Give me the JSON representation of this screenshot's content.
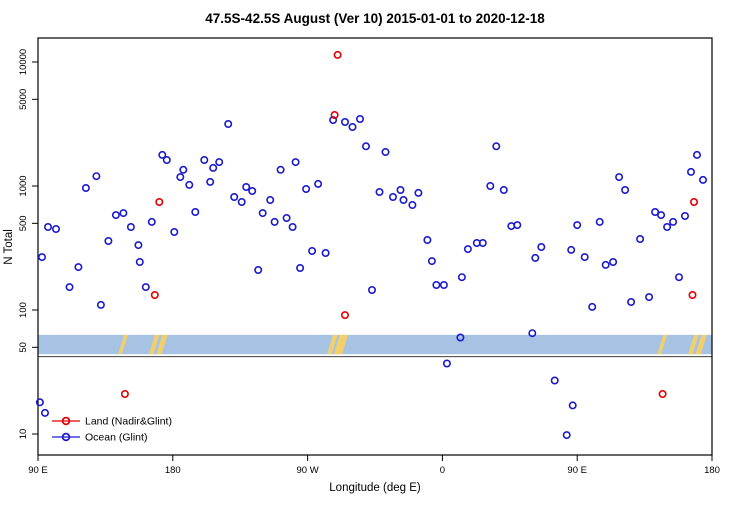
{
  "title": "47.5S-42.5S August (Ver 10)   2015-01-01 to 2020-12-18",
  "axes": {
    "y_label": "N Total",
    "x_label": "Longitude (deg E)",
    "y_ticks": [
      {
        "v": 10,
        "label": "10"
      },
      {
        "v": 50,
        "label": "50"
      },
      {
        "v": 100,
        "label": "100"
      },
      {
        "v": 500,
        "label": "500"
      },
      {
        "v": 1000,
        "label": "1000"
      },
      {
        "v": 5000,
        "label": "5000"
      },
      {
        "v": 10000,
        "label": "10000"
      }
    ],
    "x_ticks": [
      {
        "deg": 90,
        "label": "90 E"
      },
      {
        "deg": 180,
        "label": "180"
      },
      {
        "deg": 270,
        "label": "90 W"
      },
      {
        "deg": 360,
        "label": "0"
      },
      {
        "deg": 450,
        "label": "90 E"
      },
      {
        "deg": 540,
        "label": "180"
      }
    ]
  },
  "legend": [
    {
      "label": "Land (Nadir&Glint)",
      "color": "#e00000"
    },
    {
      "label": "Ocean (Glint)",
      "color": "#1a1acd"
    }
  ],
  "band": {
    "color": "#a6c3e4",
    "patch_color": "#f3cf6a",
    "top_value": 63,
    "bottom_value": 44,
    "patches": [
      [
        145.5,
        148
      ],
      [
        166,
        169
      ],
      [
        171,
        174.5
      ],
      [
        285,
        288
      ],
      [
        289.5,
        295
      ],
      [
        505.5,
        508
      ],
      [
        526,
        529
      ],
      [
        531,
        534.5
      ]
    ]
  },
  "chart_data": {
    "type": "scatter",
    "title": "47.5S-42.5S August (Ver 10)   2015-01-01 to 2020-12-18",
    "xlabel": "Longitude (deg E)",
    "ylabel": "N Total",
    "x_axis_span_deg": [
      90,
      540
    ],
    "y_log_range": [
      7,
      15500
    ],
    "y_scale": "log",
    "grid": false,
    "legend_position": "bottom-left",
    "series": [
      {
        "name": "Land (Nadir&Glint)",
        "color": "#e00000",
        "points": [
          [
            290,
            11400
          ],
          [
            288,
            3740
          ],
          [
            171,
            743
          ],
          [
            168,
            132
          ],
          [
            295,
            91
          ],
          [
            528,
            743
          ],
          [
            527,
            132
          ],
          [
            148,
            21
          ],
          [
            507,
            21
          ]
        ]
      },
      {
        "name": "Ocean (Glint)",
        "color": "#1a1acd",
        "points": [
          [
            92.7,
            267
          ],
          [
            96.7,
            467
          ],
          [
            102,
            450
          ],
          [
            111,
            153
          ],
          [
            117,
            222
          ],
          [
            122,
            964
          ],
          [
            129,
            1200
          ],
          [
            132,
            110
          ],
          [
            137,
            360
          ],
          [
            142,
            583
          ],
          [
            147,
            605
          ],
          [
            152,
            467
          ],
          [
            157,
            334
          ],
          [
            158,
            244
          ],
          [
            162,
            153
          ],
          [
            166,
            513
          ],
          [
            173,
            1780
          ],
          [
            176,
            1620
          ],
          [
            181,
            426
          ],
          [
            185,
            1180
          ],
          [
            187,
            1350
          ],
          [
            191,
            1020
          ],
          [
            195,
            617
          ],
          [
            201,
            1620
          ],
          [
            205,
            1080
          ],
          [
            207,
            1400
          ],
          [
            211,
            1560
          ],
          [
            217,
            3160
          ],
          [
            221,
            815
          ],
          [
            226,
            743
          ],
          [
            229,
            981
          ],
          [
            233,
            912
          ],
          [
            237,
            210
          ],
          [
            240,
            605
          ],
          [
            245,
            771
          ],
          [
            248,
            513
          ],
          [
            252,
            1350
          ],
          [
            256,
            552
          ],
          [
            260,
            467
          ],
          [
            262,
            1560
          ],
          [
            265,
            218
          ],
          [
            269,
            946
          ],
          [
            273,
            299
          ],
          [
            277,
            1040
          ],
          [
            282,
            288
          ],
          [
            287,
            3400
          ],
          [
            295,
            3280
          ],
          [
            300,
            2990
          ],
          [
            305,
            3470
          ],
          [
            309,
            2090
          ],
          [
            313,
            145
          ],
          [
            318,
            895
          ],
          [
            322,
            1880
          ],
          [
            327,
            815
          ],
          [
            332,
            929
          ],
          [
            334,
            771
          ],
          [
            340,
            703
          ],
          [
            344,
            879
          ],
          [
            350,
            367
          ],
          [
            353,
            248
          ],
          [
            356,
            159
          ],
          [
            361,
            159
          ],
          [
            363,
            37
          ],
          [
            372,
            60
          ],
          [
            373,
            184
          ],
          [
            377,
            310
          ],
          [
            383,
            347
          ],
          [
            387,
            347
          ],
          [
            392,
            1000
          ],
          [
            396,
            2090
          ],
          [
            401,
            929
          ],
          [
            406,
            475
          ],
          [
            410,
            484
          ],
          [
            420,
            65
          ],
          [
            422,
            263
          ],
          [
            426,
            322
          ],
          [
            435,
            27
          ],
          [
            447,
            17
          ],
          [
            443,
            9.8
          ],
          [
            446,
            305
          ],
          [
            450,
            484
          ],
          [
            455,
            267
          ],
          [
            460,
            106
          ],
          [
            465,
            513
          ],
          [
            469,
            231
          ],
          [
            474,
            244
          ],
          [
            478,
            1180
          ],
          [
            482,
            929
          ],
          [
            486,
            116
          ],
          [
            492,
            374
          ],
          [
            498,
            127
          ],
          [
            502,
            617
          ],
          [
            506,
            583
          ],
          [
            510,
            467
          ],
          [
            514,
            513
          ],
          [
            518,
            184
          ],
          [
            522,
            573
          ],
          [
            526,
            1300
          ],
          [
            530,
            1780
          ],
          [
            534,
            1120
          ],
          [
            91.3,
            18
          ],
          [
            94.7,
            14.8
          ]
        ]
      }
    ]
  }
}
